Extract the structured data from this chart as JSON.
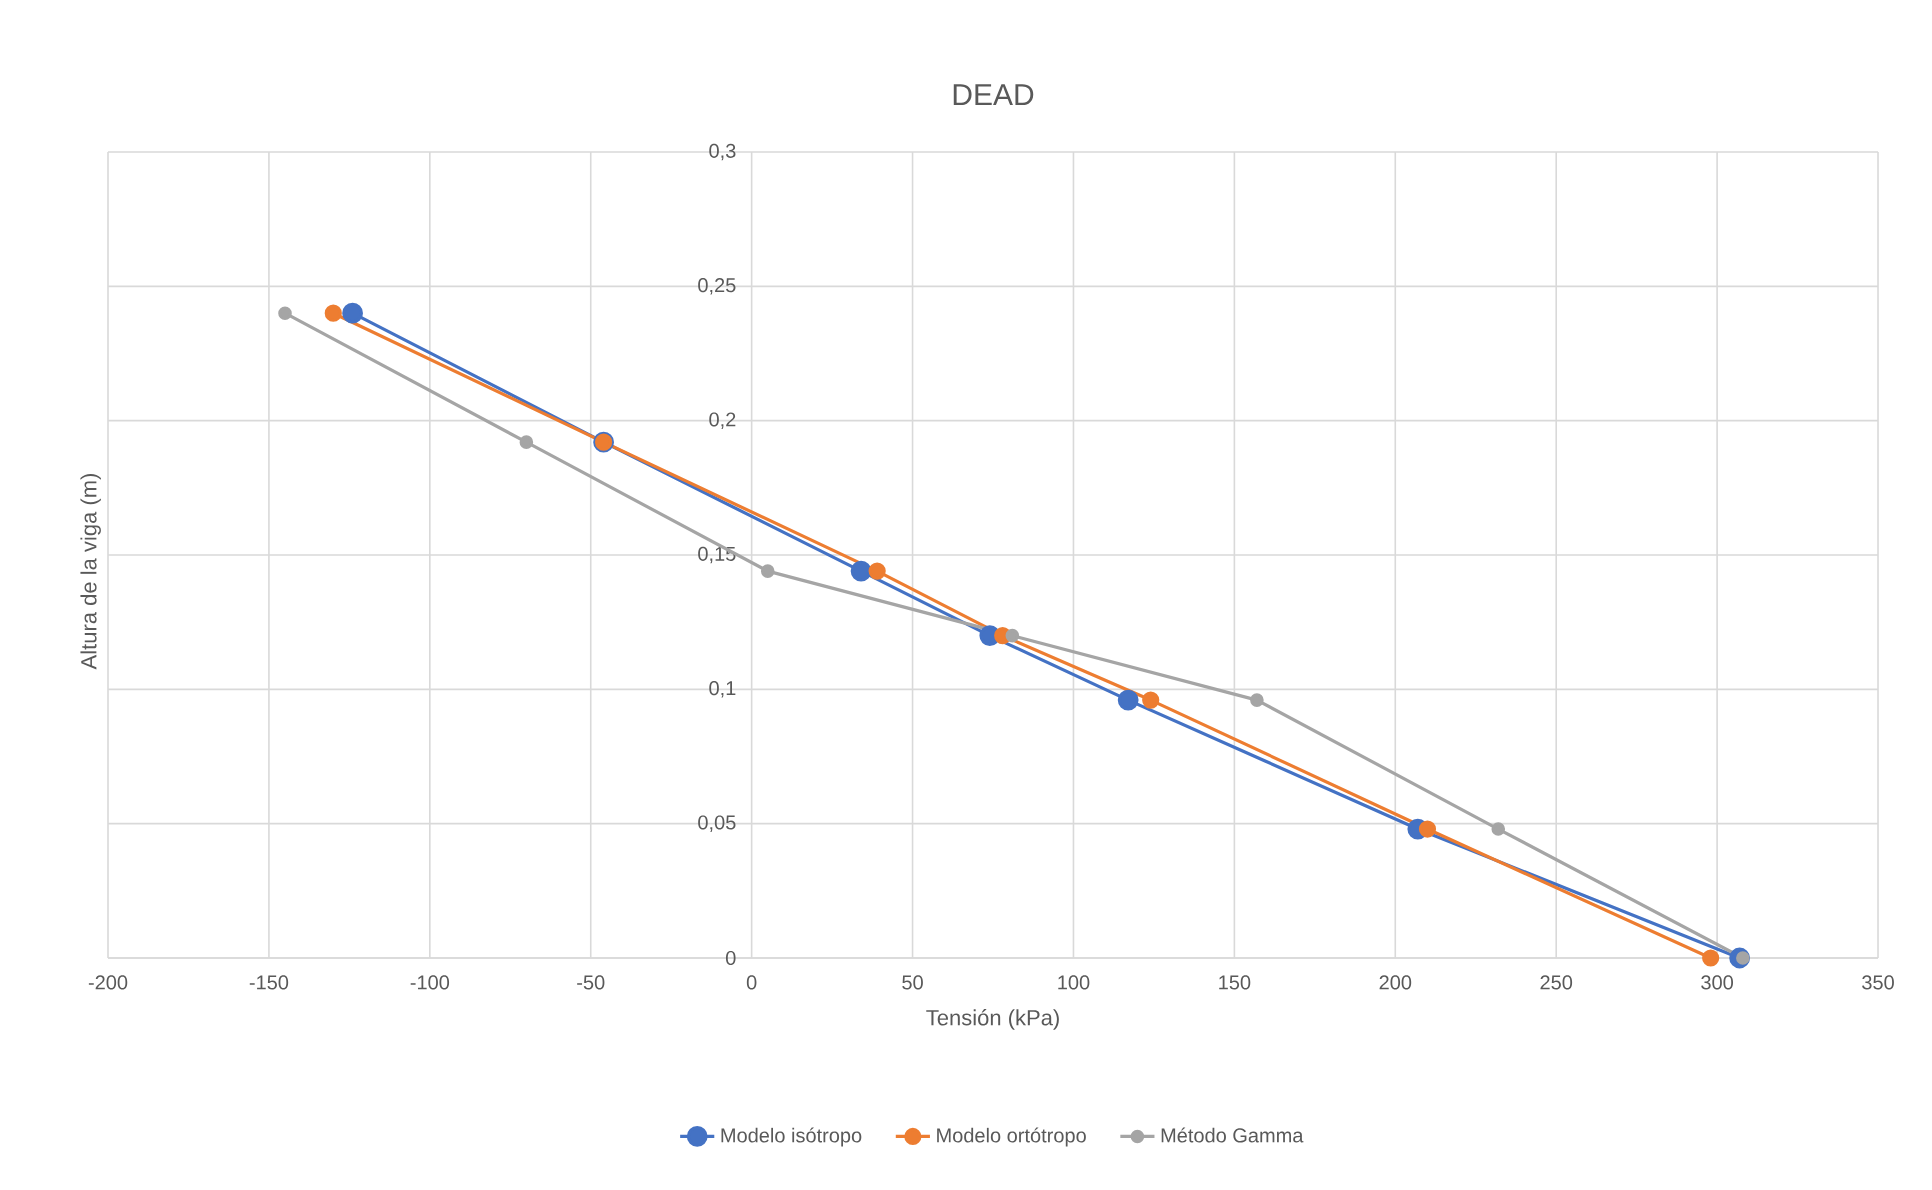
{
  "chart_data": {
    "type": "line",
    "title": "DEAD",
    "xlabel": "Tensión (kPa)",
    "ylabel": "Altura de la viga  (m)",
    "xlim": [
      -200,
      350
    ],
    "xticks": [
      -200,
      -150,
      -100,
      -50,
      0,
      50,
      100,
      150,
      200,
      250,
      300,
      350
    ],
    "ylim": [
      0,
      0.3
    ],
    "yticks": [
      {
        "value": 0,
        "label": "0"
      },
      {
        "value": 0.05,
        "label": "0,05"
      },
      {
        "value": 0.1,
        "label": "0,1"
      },
      {
        "value": 0.15,
        "label": "0,15"
      },
      {
        "value": 0.2,
        "label": "0,2"
      },
      {
        "value": 0.25,
        "label": "0,25"
      },
      {
        "value": 0.3,
        "label": "0,3"
      }
    ],
    "grid": true,
    "legend": "bottom",
    "marker": "circle",
    "line_style": "solid",
    "series": [
      {
        "name": "Modelo isótropo",
        "color": "#4472c4",
        "x": [
          -124,
          -46,
          34,
          74,
          117,
          207,
          307
        ],
        "values": [
          0.24,
          0.192,
          0.144,
          0.12,
          0.096,
          0.048,
          0
        ]
      },
      {
        "name": "Modelo ortótropo",
        "color": "#ed7d31",
        "x": [
          -130,
          -46,
          39,
          78,
          124,
          210,
          298
        ],
        "values": [
          0.24,
          0.192,
          0.144,
          0.12,
          0.096,
          0.048,
          0
        ]
      },
      {
        "name": "Método Gamma",
        "color": "#a5a5a5",
        "x": [
          -145,
          -70,
          5,
          81,
          157,
          232,
          308
        ],
        "values": [
          0.24,
          0.192,
          0.144,
          0.12,
          0.096,
          0.048,
          0
        ]
      }
    ]
  }
}
